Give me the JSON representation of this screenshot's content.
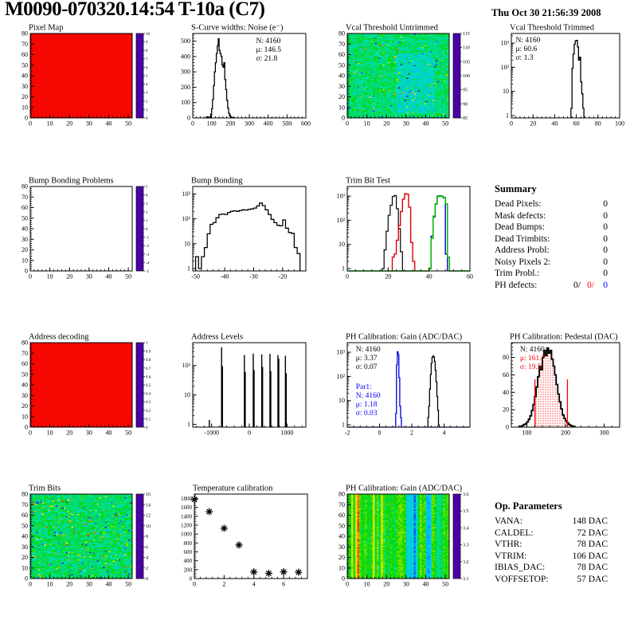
{
  "header": {
    "title": "M0090-070320.14:54 T-10a (C7)",
    "date": "Thu Oct 30 21:56:39 2008"
  },
  "summary": {
    "title": "Summary",
    "rows": [
      {
        "label": "Dead Pixels:",
        "value": "0"
      },
      {
        "label": "Mask defects:",
        "value": "0"
      },
      {
        "label": "Dead Bumps:",
        "value": "0"
      },
      {
        "label": "Dead Trimbits:",
        "value": "0"
      },
      {
        "label": "Address Probl:",
        "value": "0"
      },
      {
        "label": "Noisy Pixels 2:",
        "value": "0"
      },
      {
        "label": "Trim Probl.:",
        "value": "0"
      }
    ],
    "ph_row": {
      "label": "PH defects:",
      "values": [
        {
          "text": "0/",
          "color": "#000000"
        },
        {
          "text": "0/",
          "color": "#ff0000"
        },
        {
          "text": "0",
          "color": "#0000ff"
        }
      ]
    }
  },
  "op_params": {
    "title": "Op. Parameters",
    "rows": [
      {
        "label": "VANA:",
        "value": "148 DAC"
      },
      {
        "label": "CALDEL:",
        "value": "72 DAC"
      },
      {
        "label": "VTHR:",
        "value": "78 DAC"
      },
      {
        "label": "VTRIM:",
        "value": "106 DAC"
      },
      {
        "label": "IBIAS_DAC:",
        "value": "78 DAC"
      },
      {
        "label": "VOFFSETOP:",
        "value": "57 DAC"
      }
    ]
  },
  "palette": {
    "stops": [
      [
        0,
        "#4b00a8"
      ],
      [
        0.12,
        "#2020f0"
      ],
      [
        0.3,
        "#00c0ff"
      ],
      [
        0.45,
        "#00e0b0"
      ],
      [
        0.58,
        "#00d800"
      ],
      [
        0.72,
        "#b0e800"
      ],
      [
        0.82,
        "#ffe000"
      ],
      [
        0.91,
        "#ff8800"
      ],
      [
        1,
        "#ff0000"
      ]
    ]
  },
  "chart_data": [
    {
      "type": "heatmap",
      "title": "Pixel Map",
      "xlim": [
        0,
        52
      ],
      "ylim": [
        0,
        80
      ],
      "xticks": [
        0,
        10,
        20,
        30,
        40,
        50
      ],
      "yticks": [
        0,
        10,
        20,
        30,
        40,
        50,
        60,
        70,
        80
      ],
      "heat": {
        "mode": "solid",
        "color": "#f50800"
      },
      "cb": {
        "labels": [
          "10",
          "9",
          "8",
          "7",
          "6",
          "5",
          "4",
          "3",
          "2",
          "1",
          "0"
        ],
        "fs": 5
      }
    },
    {
      "type": "hist",
      "title": "S-Curve widths: Noise (e⁻)",
      "xlim": [
        0,
        600
      ],
      "ylim": [
        0,
        550
      ],
      "xticks": [
        0,
        100,
        200,
        300,
        400,
        500,
        600
      ],
      "yticks": [
        0,
        100,
        200,
        300,
        400,
        500
      ],
      "series": [
        {
          "x0": 70,
          "w": 5,
          "color": "#000000",
          "lw": 1.3,
          "v": [
            3,
            8,
            4,
            2,
            6,
            25,
            60,
            120,
            210,
            300,
            360,
            420,
            470,
            515,
            440,
            420,
            400,
            345,
            330,
            360,
            250,
            185,
            115,
            65,
            30,
            14,
            7,
            4,
            2,
            1
          ]
        }
      ],
      "stats": [
        {
          "x": 0.56,
          "y": 0.04,
          "lines": [
            [
              "N: 4160",
              "#000000"
            ],
            [
              "μ: 146.5",
              "#000000"
            ],
            [
              "σ: 21.8",
              "#000000"
            ]
          ]
        }
      ]
    },
    {
      "type": "heatmap",
      "title": "Vcal Threshold Untrimmed",
      "xlim": [
        0,
        52
      ],
      "ylim": [
        0,
        80
      ],
      "xticks": [
        0,
        10,
        20,
        30,
        40,
        50
      ],
      "yticks": [
        0,
        10,
        20,
        30,
        40,
        50,
        60,
        70,
        80
      ],
      "heat": {
        "mode": "noise",
        "base": 100,
        "spread": 3.4,
        "dip": 2.2,
        "ofrac": 0.025,
        "ospread": 11,
        "min": 85,
        "max": 115,
        "seed": 7
      },
      "cb": {
        "labels": [
          "115",
          "110",
          "105",
          "100",
          "95",
          "90",
          "85"
        ],
        "fs": 6
      }
    },
    {
      "type": "hist",
      "title": "Vcal Threshold Trimmed",
      "ylog": true,
      "xlim": [
        0,
        100
      ],
      "ylim": [
        0.8,
        2500
      ],
      "xticks": [
        0,
        20,
        40,
        60,
        80,
        100
      ],
      "series": [
        {
          "x0": 55,
          "w": 1,
          "color": "#000000",
          "lw": 1.3,
          "v": [
            2,
            90,
            350,
            900,
            1250,
            1300,
            700,
            200,
            260,
            25,
            8,
            2
          ]
        }
      ],
      "stats": [
        {
          "x": 0.04,
          "y": 0.03,
          "lines": [
            [
              "N: 4160",
              "#000000"
            ],
            [
              "μ: 60.6",
              "#000000"
            ],
            [
              "σ:  1.3",
              "#000000"
            ]
          ]
        }
      ]
    },
    {
      "type": "heatmap",
      "title": "Bump Bonding Problems",
      "xlim": [
        0,
        52
      ],
      "ylim": [
        0,
        80
      ],
      "xticks": [
        0,
        10,
        20,
        30,
        40,
        50
      ],
      "yticks": [
        0,
        10,
        20,
        30,
        40,
        50,
        60,
        70,
        80
      ],
      "heat": {
        "mode": "empty"
      },
      "cb": {
        "labels": [
          "5",
          "4",
          "3",
          "2",
          "1",
          "0",
          "-1",
          "-2",
          "-3",
          "-4",
          "-5"
        ],
        "fs": 5
      }
    },
    {
      "type": "hist",
      "title": "Bump Bonding",
      "ylog": true,
      "xlim": [
        -51,
        -12
      ],
      "ylim": [
        0.8,
        2000
      ],
      "xticks": [
        -50,
        -40,
        -30,
        -20
      ],
      "series": [
        {
          "x0": -50,
          "w": 1,
          "color": "#000000",
          "lw": 1.3,
          "v": [
            3,
            1,
            3,
            7,
            25,
            60,
            70,
            110,
            150,
            155,
            150,
            180,
            200,
            210,
            200,
            215,
            230,
            225,
            240,
            250,
            270,
            330,
            430,
            340,
            230,
            150,
            95,
            70,
            55,
            52,
            90,
            42,
            28,
            26,
            7,
            4
          ]
        }
      ]
    },
    {
      "type": "hist",
      "title": "Trim Bit Test",
      "ylog": true,
      "xlim": [
        0,
        60
      ],
      "ylim": [
        0.8,
        2500
      ],
      "xticks": [
        0,
        20,
        40,
        60
      ],
      "series": [
        {
          "x0": 17,
          "w": 1,
          "color": "#000000",
          "lw": 1.2,
          "v": [
            1,
            6,
            35,
            160,
            420,
            950,
            1050,
            300,
            45,
            5
          ]
        },
        {
          "x0": 22,
          "w": 1,
          "color": "#dd0000",
          "lw": 1.4,
          "v": [
            3,
            4,
            15,
            60,
            230,
            750,
            1250,
            1200,
            350,
            12,
            2
          ]
        },
        {
          "x0": 40,
          "w": 1,
          "color": "#0000dd",
          "lw": 1.4,
          "v": [
            1,
            22,
            140,
            470,
            1000,
            1040,
            960,
            850,
            4
          ]
        },
        {
          "x0": 40,
          "w": 1,
          "color": "#00bb00",
          "lw": 1.5,
          "base": true,
          "v": [
            1,
            18,
            150,
            480,
            950,
            1020,
            980,
            870,
            480,
            3
          ]
        }
      ]
    },
    {
      "type": "text",
      "source": "summary"
    },
    {
      "type": "heatmap",
      "title": "Address decoding",
      "xlim": [
        0,
        52
      ],
      "ylim": [
        0,
        80
      ],
      "xticks": [
        0,
        10,
        20,
        30,
        40,
        50
      ],
      "yticks": [
        0,
        10,
        20,
        30,
        40,
        50,
        60,
        70,
        80
      ],
      "heat": {
        "mode": "solid",
        "color": "#f50800"
      },
      "cb": {
        "labels": [
          "1",
          "0.9",
          "0.8",
          "0.7",
          "0.6",
          "0.5",
          "0.4",
          "0.3",
          "0.2",
          "0.1",
          "0"
        ],
        "fs": 5
      }
    },
    {
      "type": "spikes",
      "title": "Address Levels",
      "ylog": true,
      "xlim": [
        -1500,
        1500
      ],
      "ylim": [
        0.8,
        600
      ],
      "xticks": [
        -1000,
        0,
        1000
      ],
      "spikes": [
        [
          -1060,
          1.4
        ],
        [
          -735,
          420
        ],
        [
          -712,
          95
        ],
        [
          -130,
          230
        ],
        [
          -108,
          60
        ],
        [
          105,
          255
        ],
        [
          127,
          70
        ],
        [
          330,
          240
        ],
        [
          352,
          90
        ],
        [
          548,
          250
        ],
        [
          570,
          65
        ],
        [
          760,
          225
        ],
        [
          782,
          170
        ],
        [
          958,
          215
        ],
        [
          980,
          55
        ]
      ]
    },
    {
      "type": "hist",
      "title": "PH Calibration: Gain (ADC/DAC)",
      "ylog": true,
      "xlim": [
        -2,
        5.6
      ],
      "ylim": [
        0.8,
        2500
      ],
      "xticks": [
        -2,
        0,
        2,
        4
      ],
      "series": [
        {
          "x0": 1.0,
          "w": 0.05,
          "color": "#0000dd",
          "lw": 1.3,
          "base": true,
          "v": [
            3,
            300,
            1050,
            800,
            90,
            6,
            2
          ]
        },
        {
          "x0": 3.0,
          "w": 0.05,
          "color": "#000000",
          "lw": 1.3,
          "v": [
            2,
            6,
            30,
            120,
            350,
            620,
            700,
            650,
            420,
            180,
            60,
            15,
            4,
            1
          ]
        }
      ],
      "stats": [
        {
          "x": 0.07,
          "y": 0.03,
          "lines": [
            [
              "N: 4160",
              "#000000"
            ],
            [
              "μ: 3.37",
              "#000000"
            ],
            [
              "σ: 0.07",
              "#000000"
            ]
          ]
        },
        {
          "x": 0.07,
          "y": 0.47,
          "lines": [
            [
              "Par1:",
              "#0000ff"
            ],
            [
              "N: 4160",
              "#0000ff"
            ],
            [
              "μ: 1.18",
              "#0000ff"
            ],
            [
              "σ: 0.03",
              "#0000ff"
            ]
          ]
        }
      ]
    },
    {
      "type": "hist",
      "title": "PH Calibration: Pedestal (DAC)",
      "xlim": [
        60,
        340
      ],
      "ylim": [
        0,
        97
      ],
      "xticks": [
        100,
        200,
        300
      ],
      "yticks": [
        0,
        20,
        40,
        60,
        80
      ],
      "pattern": true,
      "series": [
        {
          "x0": 120,
          "w": 4,
          "fill": true,
          "v": [
            35,
            46,
            58,
            70,
            66,
            80,
            88,
            82,
            91,
            85,
            88,
            78,
            70,
            60,
            49,
            38,
            29,
            21,
            14,
            10,
            7
          ]
        },
        {
          "x0": 80,
          "w": 4,
          "color": "#000000",
          "lw": 1.8,
          "v": [
            1,
            1,
            2,
            3,
            4,
            6,
            9,
            13,
            19,
            26,
            35,
            46,
            58,
            70,
            66,
            80,
            88,
            82,
            91,
            85,
            88,
            78,
            70,
            60,
            49,
            38,
            29,
            21,
            14,
            10,
            7,
            5,
            3,
            2,
            1,
            1
          ]
        }
      ],
      "vlines": [
        {
          "x": 121,
          "h": 55,
          "c": "#ff0000"
        },
        {
          "x": 205,
          "h": 55,
          "c": "#ff0000"
        }
      ],
      "stats": [
        {
          "x": 0.08,
          "y": 0.03,
          "lines": [
            [
              "N: 4160",
              "#000000"
            ],
            [
              "μ: 161.7",
              "#ff0000"
            ],
            [
              "σ: 19.5",
              "#ff0000"
            ]
          ]
        }
      ]
    },
    {
      "type": "heatmap",
      "title": "Trim Bits",
      "xlim": [
        0,
        52
      ],
      "ylim": [
        0,
        80
      ],
      "xticks": [
        0,
        10,
        20,
        30,
        40,
        50
      ],
      "yticks": [
        0,
        10,
        20,
        30,
        40,
        50,
        60,
        70,
        80
      ],
      "heat": {
        "mode": "noise",
        "base": 8.1,
        "spread": 1.8,
        "ofrac": 0.05,
        "ospread": 6,
        "min": 0,
        "max": 16,
        "seed": 13
      },
      "cb": {
        "labels": [
          "16",
          "14",
          "12",
          "10",
          "8",
          "6",
          "4",
          "2",
          "0"
        ],
        "fs": 6
      }
    },
    {
      "type": "scatter",
      "title": "Temperature calibration",
      "xlim": [
        0,
        7.6
      ],
      "ylim": [
        0,
        1900
      ],
      "ml": 32,
      "yfs": 7,
      "xticks": [
        0,
        2,
        4,
        6
      ],
      "yticks": [
        0,
        200,
        400,
        600,
        800,
        1000,
        1200,
        1400,
        1600,
        1800
      ],
      "pts": [
        [
          0,
          1780
        ],
        [
          1,
          1505
        ],
        [
          2,
          1130
        ],
        [
          3,
          755
        ],
        [
          4,
          150
        ],
        [
          5,
          118
        ],
        [
          6,
          152
        ],
        [
          7,
          142
        ]
      ]
    },
    {
      "type": "heatmap",
      "title": "PH Calibration: Gain (ADC/DAC)",
      "xlim": [
        0,
        52
      ],
      "ylim": [
        0,
        80
      ],
      "xticks": [
        0,
        10,
        20,
        30,
        40,
        50
      ],
      "yticks": [
        0,
        10,
        20,
        30,
        40,
        50,
        60,
        70,
        80
      ],
      "heat": {
        "mode": "stripes",
        "cbase": 3.41,
        "cspread": 0.09,
        "jitter": 0.07,
        "vmin": 3.08,
        "vmax": 3.64,
        "seed": 21,
        "special": {
          "2": 3.5,
          "4": 3.52,
          "5": 3.6,
          "13": 3.52,
          "17": 3.5,
          "30": 3.28,
          "31": 3.3,
          "32": 3.27,
          "33": 3.3,
          "34": 3.2,
          "35": 3.3,
          "40": 3.26,
          "41": 3.24,
          "42": 3.3,
          "46": 3.33
        }
      },
      "cb": {
        "labels": [
          "3.6",
          "3.5",
          "3.4",
          "3.3",
          "3.2",
          "3.1"
        ],
        "fs": 6
      }
    },
    {
      "type": "text",
      "source": "op_params"
    }
  ]
}
